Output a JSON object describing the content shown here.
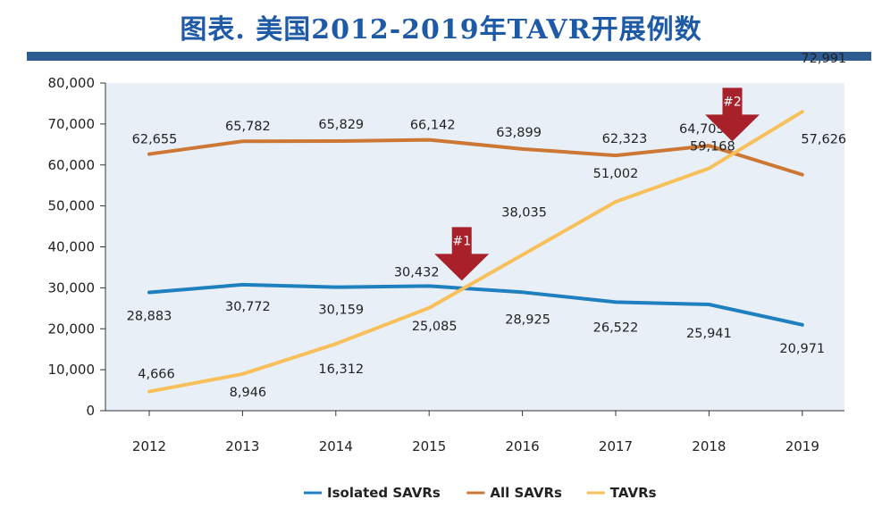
{
  "chart_data": {
    "type": "line",
    "title": "图表. 美国2012-2019年TAVR开展例数",
    "x": [
      "2012",
      "2013",
      "2014",
      "2015",
      "2016",
      "2017",
      "2018",
      "2019"
    ],
    "ylim": [
      0,
      80000
    ],
    "yticks": [
      "0",
      "10,000",
      "20,000",
      "30,000",
      "40,000",
      "50,000",
      "60,000",
      "70,000",
      "80,000"
    ],
    "grid": false,
    "legend_position": "bottom",
    "series": [
      {
        "name": "Isolated SAVRs",
        "color": "#1f80c0",
        "values": [
          28883,
          30772,
          30159,
          30432,
          28925,
          26522,
          25941,
          20971
        ],
        "labels": [
          "28,883",
          "30,772",
          "30,159",
          "30,432",
          "28,925",
          "26,522",
          "25,941",
          "20,971"
        ]
      },
      {
        "name": "All SAVRs",
        "color": "#cc7733",
        "values": [
          62655,
          65782,
          65829,
          66142,
          63899,
          62323,
          64705,
          57626
        ],
        "labels": [
          "62,655",
          "65,782",
          "65,829",
          "66,142",
          "63,899",
          "62,323",
          "64,705",
          "57,626"
        ]
      },
      {
        "name": "TAVRs",
        "color": "#f8c05a",
        "values": [
          4666,
          8946,
          16312,
          25085,
          38035,
          51002,
          59168,
          72991
        ],
        "labels": [
          "4,666",
          "8,946",
          "16,312",
          "25,085",
          "38,035",
          "51,002",
          "59,168",
          "72,991"
        ]
      }
    ],
    "annotations": [
      {
        "text": "#1",
        "x": "2015",
        "note_x_offset": 0.35,
        "y": 30000
      },
      {
        "text": "#2",
        "x": "2018",
        "note_x_offset": 0.25,
        "y": 64000
      }
    ],
    "colors": {
      "plot_bg": "#e8eff7",
      "arrow": "#a8202a",
      "title": "#1f5aa6",
      "title_bar": "#2d5c93"
    }
  }
}
